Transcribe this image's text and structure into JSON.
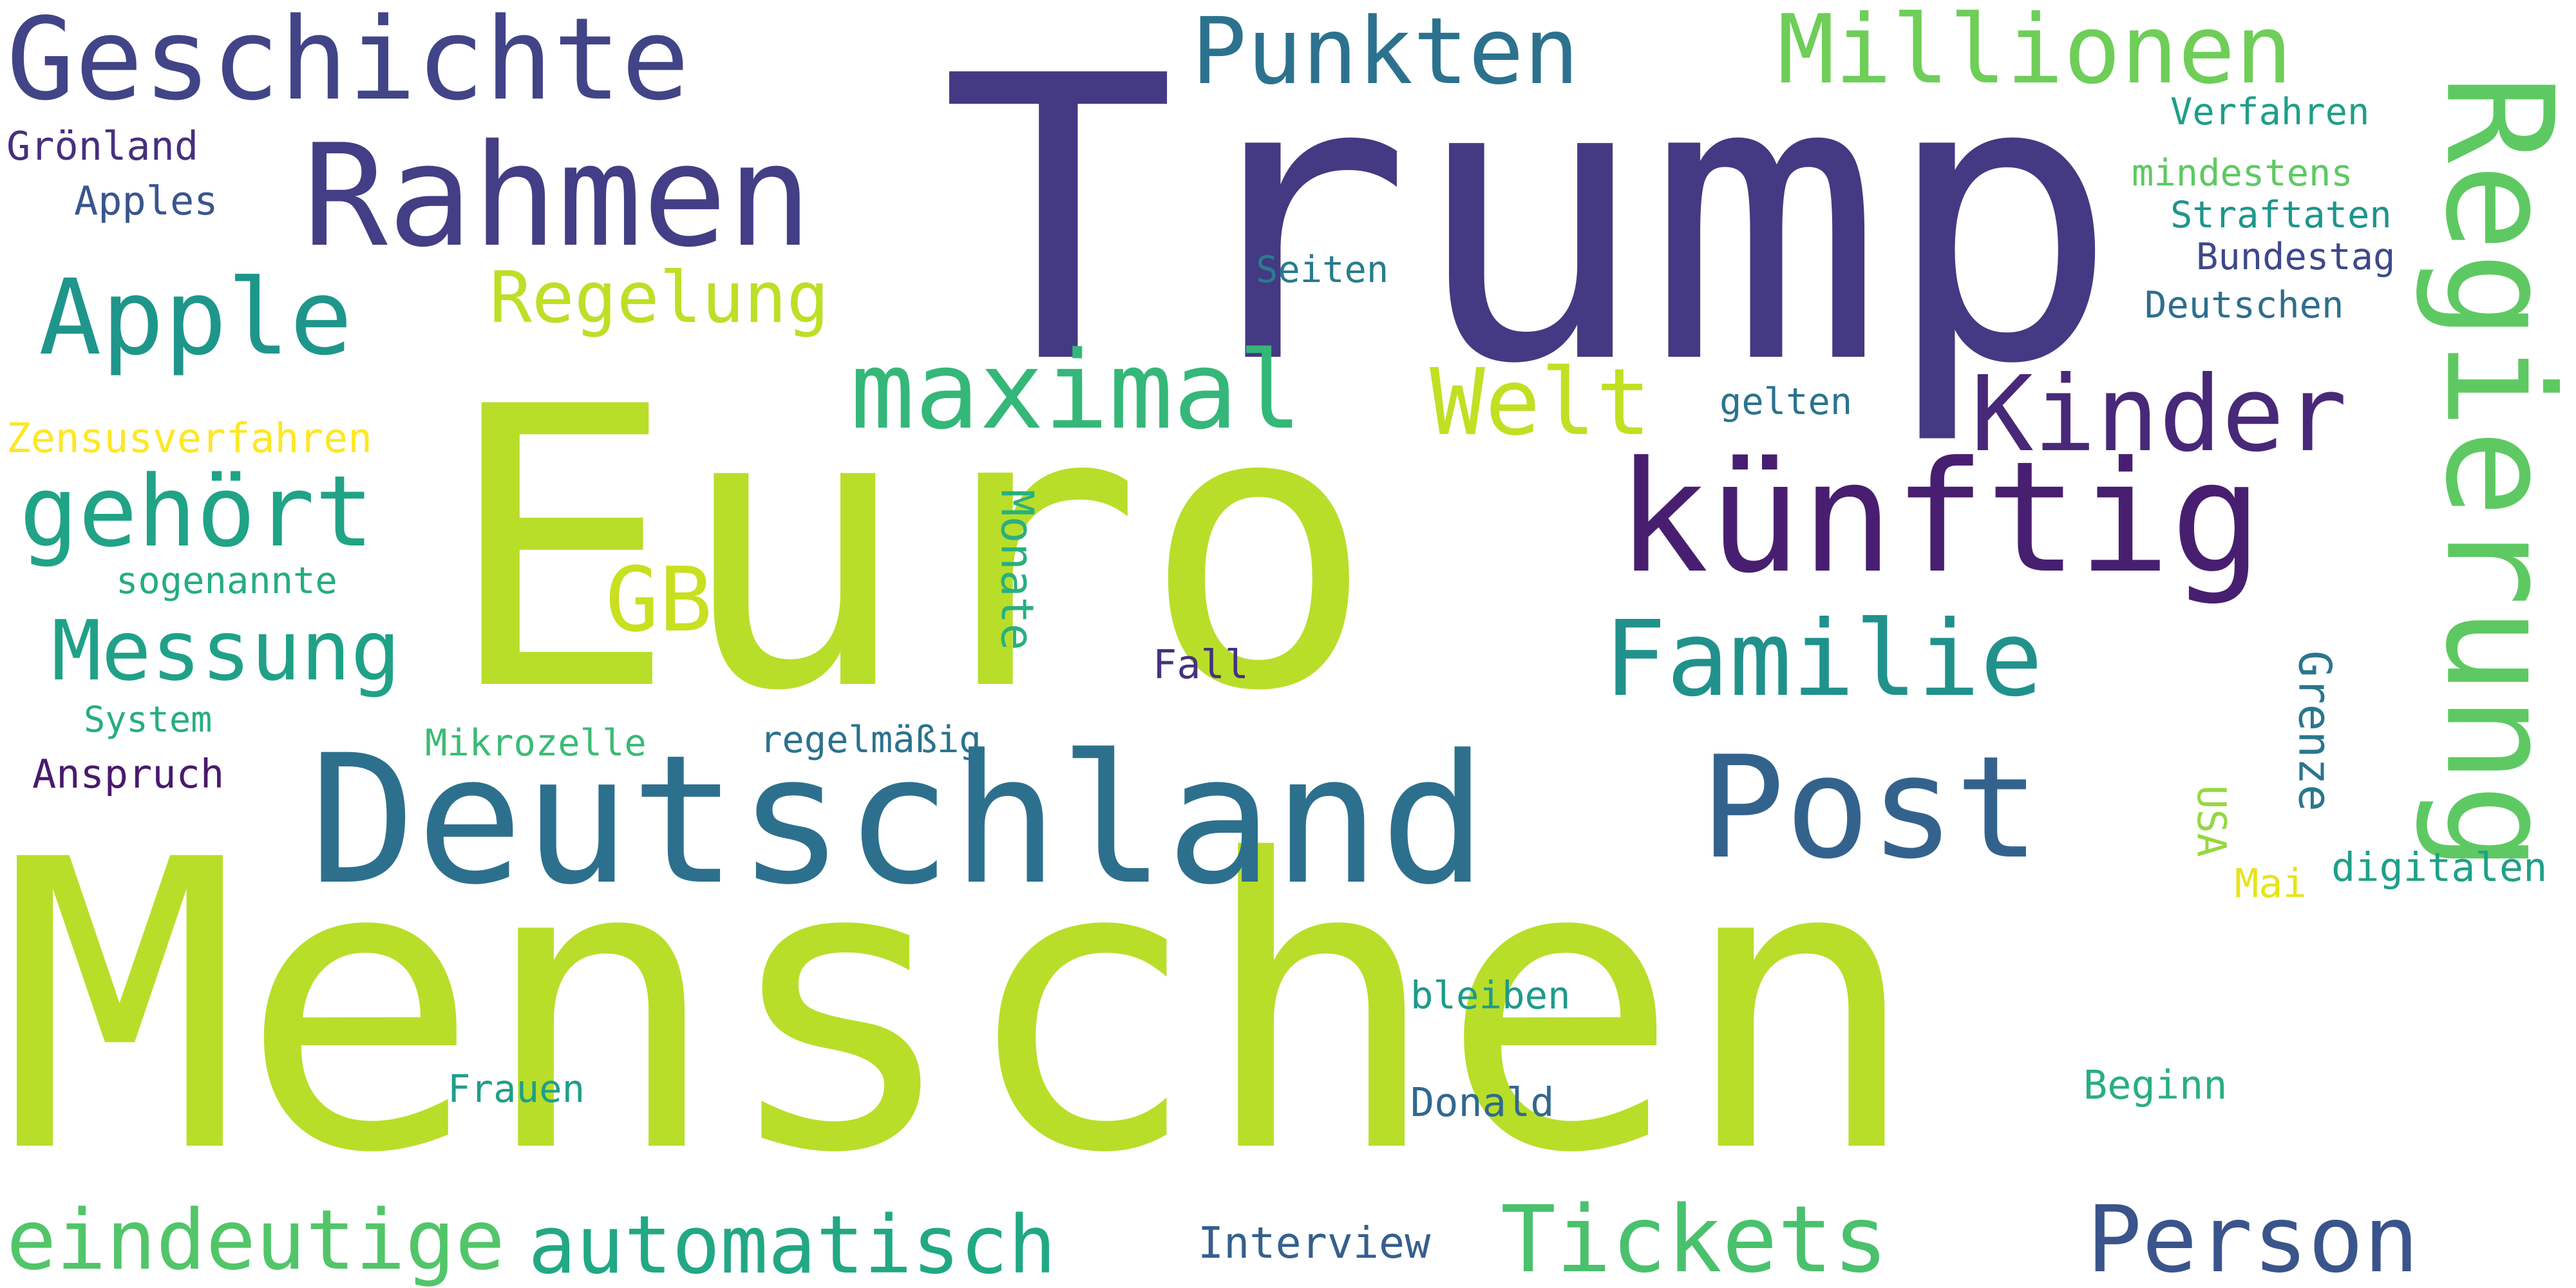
{
  "title": "",
  "words": [
    {
      "text": "Menschen",
      "color": "#b8de29",
      "vertical": false
    },
    {
      "text": "Euro",
      "color": "#b8de29",
      "vertical": false
    },
    {
      "text": "Trump",
      "color": "#443983",
      "vertical": false
    },
    {
      "text": "Deutschland",
      "color": "#2d708e",
      "vertical": false
    },
    {
      "text": "künftig",
      "color": "#481f70",
      "vertical": false
    },
    {
      "text": "Rahmen",
      "color": "#433e85",
      "vertical": false
    },
    {
      "text": "Geschichte",
      "color": "#414487",
      "vertical": false
    },
    {
      "text": "Post",
      "color": "#33638d",
      "vertical": false
    },
    {
      "text": "Person",
      "color": "#3a548c",
      "vertical": false
    },
    {
      "text": "Tickets",
      "color": "#4ac16d",
      "vertical": false
    },
    {
      "text": "Familie",
      "color": "#21918c",
      "vertical": false
    },
    {
      "text": "Regierung",
      "color": "#5ec962",
      "vertical": true
    },
    {
      "text": "Kinder",
      "color": "#482878",
      "vertical": false
    },
    {
      "text": "automatisch",
      "color": "#22a884",
      "vertical": false
    },
    {
      "text": "maximal",
      "color": "#35b779",
      "vertical": false
    },
    {
      "text": "Welt",
      "color": "#c2df23",
      "vertical": false
    },
    {
      "text": "Apple",
      "color": "#1f968b",
      "vertical": false
    },
    {
      "text": "Millionen",
      "color": "#6ece58",
      "vertical": false
    },
    {
      "text": "Punkten",
      "color": "#2c728e",
      "vertical": false
    },
    {
      "text": "eindeutige",
      "color": "#52c569",
      "vertical": false
    },
    {
      "text": "gehört",
      "color": "#20a386",
      "vertical": false
    },
    {
      "text": "Regelung",
      "color": "#bddf26",
      "vertical": false
    },
    {
      "text": "GB",
      "color": "#c8e020",
      "vertical": false
    },
    {
      "text": "Messung",
      "color": "#1fa188",
      "vertical": false
    },
    {
      "text": "Zensusverfahren",
      "color": "#fde725",
      "vertical": false
    },
    {
      "text": "sogenannte",
      "color": "#25ac82",
      "vertical": false
    },
    {
      "text": "System",
      "color": "#26ad81",
      "vertical": false
    },
    {
      "text": "Anspruch",
      "color": "#481a6c",
      "vertical": false
    },
    {
      "text": "Mikrozelle",
      "color": "#3bbb75",
      "vertical": false
    },
    {
      "text": "regelmäßig",
      "color": "#2c728e",
      "vertical": false
    },
    {
      "text": "Monate",
      "color": "#29af7f",
      "vertical": true
    },
    {
      "text": "Fall",
      "color": "#46327e",
      "vertical": false
    },
    {
      "text": "Grönland",
      "color": "#46307e",
      "vertical": false
    },
    {
      "text": "Apples",
      "color": "#39568c",
      "vertical": false
    },
    {
      "text": "Verfahren",
      "color": "#1f9e89",
      "vertical": false
    },
    {
      "text": "mindestens",
      "color": "#5ec962",
      "vertical": false
    },
    {
      "text": "Straftaten",
      "color": "#1f958b",
      "vertical": false
    },
    {
      "text": "Bundestag",
      "color": "#3e4989",
      "vertical": false
    },
    {
      "text": "Deutschen",
      "color": "#2e6e8e",
      "vertical": false
    },
    {
      "text": "Seiten",
      "color": "#287c8e",
      "vertical": false
    },
    {
      "text": "gelten",
      "color": "#2c738e",
      "vertical": false
    },
    {
      "text": "Grenze",
      "color": "#2a768e",
      "vertical": true
    },
    {
      "text": "USA",
      "color": "#95d840",
      "vertical": true
    },
    {
      "text": "Mai",
      "color": "#e7e419",
      "vertical": false
    },
    {
      "text": "digitalen",
      "color": "#1fa088",
      "vertical": false
    },
    {
      "text": "bleiben",
      "color": "#1f9a8a",
      "vertical": false
    },
    {
      "text": "Frauen",
      "color": "#1f9e89",
      "vertical": false
    },
    {
      "text": "Donald",
      "color": "#31688e",
      "vertical": false
    },
    {
      "text": "Beginn",
      "color": "#29af7f",
      "vertical": false
    },
    {
      "text": "Interview",
      "color": "#355f8d",
      "vertical": false
    }
  ]
}
